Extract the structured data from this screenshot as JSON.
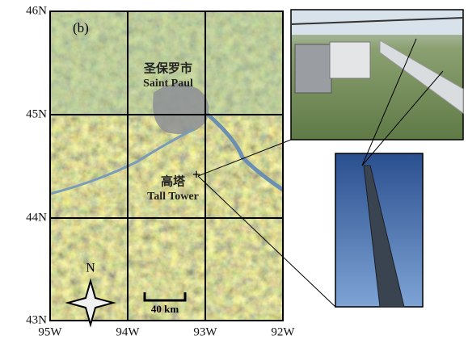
{
  "panel_label": "(b)",
  "lat_labels": [
    "46N",
    "45N",
    "44N",
    "43N"
  ],
  "lon_labels": [
    "95W",
    "94W",
    "93W",
    "92W"
  ],
  "places": [
    {
      "label_zh": "圣保罗市",
      "label_en": "Saint Paul"
    },
    {
      "label_zh": "高塔",
      "label_en": "Tall Tower"
    }
  ],
  "north_arrow": "N",
  "scale_bar": "40 km"
}
